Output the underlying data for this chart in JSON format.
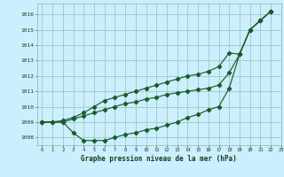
{
  "title": "Graphe pression niveau de la mer (hPa)",
  "bg_color": "#cceeff",
  "grid_color": "#99ccbb",
  "line_color": "#1a5c2a",
  "xlim": [
    -0.5,
    23
  ],
  "ylim": [
    1007.5,
    1016.7
  ],
  "yticks": [
    1008,
    1009,
    1010,
    1011,
    1012,
    1013,
    1014,
    1015,
    1016
  ],
  "xticks": [
    0,
    1,
    2,
    3,
    4,
    5,
    6,
    7,
    8,
    9,
    10,
    11,
    12,
    13,
    14,
    15,
    16,
    17,
    18,
    19,
    20,
    21,
    22,
    23
  ],
  "x": [
    0,
    1,
    2,
    3,
    4,
    5,
    6,
    7,
    8,
    9,
    10,
    11,
    12,
    13,
    14,
    15,
    16,
    17,
    18,
    19,
    20,
    21,
    22
  ],
  "y_top": [
    1009.0,
    1009.0,
    1009.1,
    1009.3,
    1009.6,
    1010.0,
    1010.4,
    1010.6,
    1010.8,
    1011.0,
    1011.2,
    1011.4,
    1011.6,
    1011.8,
    1012.0,
    1012.1,
    1012.3,
    1012.6,
    1013.5,
    1013.4,
    1015.0,
    1015.6,
    1016.2
  ],
  "y_mid": [
    1009.0,
    1009.0,
    1009.0,
    1009.2,
    1009.4,
    1009.6,
    1009.8,
    1010.0,
    1010.2,
    1010.3,
    1010.5,
    1010.6,
    1010.8,
    1010.9,
    1011.0,
    1011.1,
    1011.2,
    1011.4,
    1012.2,
    1013.4,
    1015.0,
    1015.6,
    1016.2
  ],
  "y_bot": [
    1009.0,
    1009.0,
    1009.0,
    1008.3,
    1007.8,
    1007.8,
    1007.8,
    1008.0,
    1008.2,
    1008.3,
    1008.5,
    1008.6,
    1008.8,
    1009.0,
    1009.3,
    1009.5,
    1009.8,
    1010.0,
    1011.2,
    1013.4,
    1015.0,
    1015.6,
    1016.2
  ]
}
